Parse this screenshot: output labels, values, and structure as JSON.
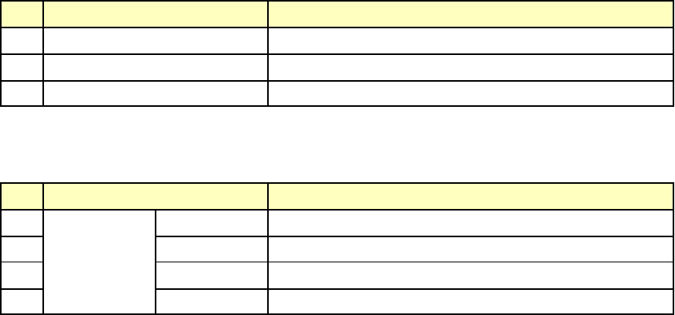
{
  "colors": {
    "header_background": "#ffffc0",
    "border": "#000000",
    "cell_background": "#ffffff"
  }
}
